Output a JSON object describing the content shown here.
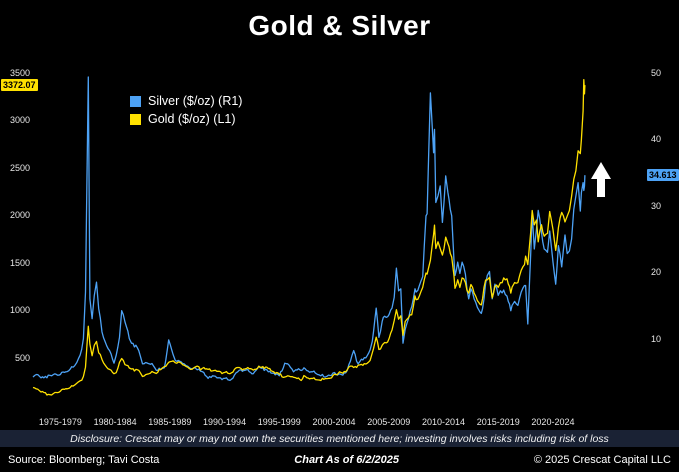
{
  "title": "Gold & Silver",
  "badges": {
    "gold_last": "3372.07",
    "silver_last": "34.613"
  },
  "footer": {
    "disclosure": "Disclosure: Crescat may or may not own the securities mentioned here; investing involves risks including risk of loss",
    "source": "Source: Bloomberg; Tavi Costa",
    "as_of": "Chart As of 6/2/2025",
    "copyright": "© 2025 Crescat Capital LLC"
  },
  "chart_data": {
    "type": "line",
    "title": "Gold & Silver",
    "x_range": [
      1975,
      2031
    ],
    "left_ylim": [
      0,
      3500
    ],
    "right_ylim": [
      0,
      50
    ],
    "left_ticks": [
      500,
      1000,
      1500,
      2000,
      2500,
      3000,
      3500
    ],
    "right_ticks": [
      10,
      20,
      30,
      40,
      50
    ],
    "x_labels": [
      "1975-1979",
      "1980-1984",
      "1985-1989",
      "1990-1994",
      "1995-1999",
      "2000-2004",
      "2005-2009",
      "2010-2014",
      "2015-2019",
      "2020-2024"
    ],
    "legend_position": "top-left",
    "grid": false,
    "background": "#000000",
    "annotations": [
      {
        "type": "arrow-up",
        "color": "#ffffff"
      }
    ],
    "x": [
      1975.0,
      1975.3,
      1975.6,
      1976.0,
      1976.4,
      1976.7,
      1977.0,
      1977.5,
      1978.0,
      1978.4,
      1978.8,
      1979.0,
      1979.3,
      1979.6,
      1979.8,
      1980.05,
      1980.2,
      1980.4,
      1980.6,
      1980.8,
      1981.0,
      1981.3,
      1981.6,
      1982.0,
      1982.4,
      1982.6,
      1982.9,
      1983.1,
      1983.4,
      1983.8,
      1984.0,
      1984.4,
      1984.8,
      1985.0,
      1985.3,
      1985.6,
      1986.0,
      1986.4,
      1986.8,
      1987.0,
      1987.4,
      1987.8,
      1988.0,
      1988.4,
      1988.8,
      1989.0,
      1989.4,
      1989.8,
      1990.0,
      1990.3,
      1990.6,
      1991.0,
      1991.4,
      1991.8,
      1992.0,
      1992.4,
      1992.8,
      1993.0,
      1993.4,
      1993.7,
      1994.0,
      1994.5,
      1995.0,
      1995.5,
      1996.0,
      1996.5,
      1997.0,
      1997.5,
      1998.0,
      1998.4,
      1998.8,
      1999.0,
      1999.5,
      1999.75,
      2000.0,
      2000.4,
      2000.8,
      2001.0,
      2001.3,
      2001.7,
      2002.0,
      2002.4,
      2002.8,
      2003.0,
      2003.3,
      2003.7,
      2004.0,
      2004.3,
      2004.7,
      2005.0,
      2005.4,
      2005.8,
      2006.0,
      2006.35,
      2006.6,
      2006.9,
      2007.0,
      2007.4,
      2007.8,
      2008.0,
      2008.2,
      2008.4,
      2008.6,
      2008.8,
      2009.0,
      2009.3,
      2009.6,
      2009.9,
      2010.0,
      2010.3,
      2010.6,
      2010.9,
      2011.0,
      2011.3,
      2011.6,
      2011.68,
      2011.8,
      2012.0,
      2012.2,
      2012.4,
      2012.7,
      2012.9,
      2013.0,
      2013.25,
      2013.45,
      2013.55,
      2013.8,
      2014.0,
      2014.2,
      2014.5,
      2014.8,
      2015.0,
      2015.3,
      2015.6,
      2015.95,
      2016.2,
      2016.5,
      2016.7,
      2016.95,
      2017.2,
      2017.5,
      2017.7,
      2018.0,
      2018.3,
      2018.65,
      2019.0,
      2019.3,
      2019.6,
      2019.9,
      2020.0,
      2020.2,
      2020.6,
      2020.8,
      2021.0,
      2021.15,
      2021.45,
      2021.7,
      2022.0,
      2022.2,
      2022.5,
      2022.75,
      2023.0,
      2023.3,
      2023.6,
      2023.8,
      2024.0,
      2024.2,
      2024.4,
      2024.6,
      2024.8,
      2025.0,
      2025.1,
      2025.25,
      2025.32,
      2025.38,
      2025.42
    ],
    "series": [
      {
        "name": "Silver ($/oz) (R1)",
        "axis": "right",
        "color": "#4da2f5",
        "values": [
          4.2,
          4.6,
          4.3,
          4.1,
          4.5,
          4.4,
          4.7,
          4.6,
          5.0,
          5.4,
          5.9,
          6.4,
          7.5,
          10.0,
          17.0,
          49.4,
          16.0,
          13.0,
          16.5,
          18.5,
          14.5,
          11.0,
          9.5,
          8.2,
          6.3,
          7.5,
          10.2,
          14.2,
          12.5,
          10.0,
          9.3,
          9.0,
          7.4,
          6.2,
          6.4,
          6.2,
          5.9,
          5.2,
          5.5,
          5.6,
          9.8,
          7.6,
          6.7,
          6.6,
          6.2,
          5.9,
          5.5,
          5.6,
          5.3,
          5.1,
          4.9,
          4.0,
          4.4,
          4.1,
          4.1,
          4.0,
          3.8,
          3.7,
          4.5,
          5.0,
          5.3,
          5.3,
          4.7,
          5.5,
          5.6,
          5.0,
          4.8,
          4.4,
          6.3,
          6.0,
          5.0,
          5.3,
          5.2,
          5.6,
          5.2,
          5.0,
          4.8,
          4.6,
          4.4,
          4.2,
          4.5,
          4.8,
          4.5,
          4.7,
          4.5,
          5.2,
          6.6,
          8.2,
          6.2,
          6.9,
          7.1,
          8.3,
          9.6,
          14.6,
          10.2,
          12.6,
          13.2,
          13.3,
          14.6,
          16.2,
          20.6,
          17.2,
          17.5,
          9.3,
          11.4,
          13.0,
          14.8,
          17.5,
          17.0,
          18.0,
          19.3,
          28.5,
          28.8,
          47.0,
          38.0,
          41.5,
          30.5,
          31.5,
          33.0,
          27.5,
          34.5,
          32.0,
          31.0,
          28.5,
          22.0,
          19.5,
          21.5,
          19.8,
          21.5,
          19.7,
          16.0,
          17.5,
          16.0,
          14.7,
          13.8,
          16.0,
          19.5,
          20.1,
          16.0,
          18.2,
          16.5,
          17.2,
          17.3,
          16.4,
          14.2,
          15.6,
          15.0,
          17.0,
          18.0,
          18.0,
          12.2,
          28.8,
          23.5,
          26.5,
          29.3,
          26.0,
          23.5,
          23.0,
          26.2,
          21.5,
          18.2,
          24.0,
          20.8,
          25.6,
          22.8,
          23.2,
          25.0,
          29.5,
          31.5,
          33.5,
          29.2,
          32.0,
          33.5,
          32.3,
          33.0,
          34.613
        ]
      },
      {
        "name": "Gold ($/oz) (L1)",
        "axis": "left",
        "color": "#ffe100",
        "values": [
          185,
          170,
          150,
          132,
          112,
          105,
          132,
          145,
          172,
          185,
          210,
          230,
          255,
          300,
          400,
          830,
          640,
          520,
          630,
          670,
          550,
          480,
          420,
          375,
          330,
          340,
          450,
          490,
          425,
          390,
          380,
          375,
          340,
          300,
          320,
          330,
          345,
          345,
          390,
          405,
          450,
          465,
          445,
          450,
          420,
          405,
          375,
          400,
          410,
          370,
          395,
          375,
          360,
          355,
          355,
          340,
          335,
          330,
          375,
          395,
          385,
          385,
          378,
          385,
          405,
          385,
          350,
          325,
          295,
          305,
          292,
          287,
          258,
          310,
          288,
          280,
          268,
          265,
          258,
          278,
          282,
          310,
          320,
          350,
          335,
          370,
          410,
          395,
          420,
          428,
          432,
          470,
          550,
          715,
          585,
          630,
          645,
          665,
          790,
          890,
          1005,
          905,
          940,
          735,
          880,
          920,
          950,
          1150,
          1110,
          1150,
          1240,
          1390,
          1380,
          1525,
          1800,
          1895,
          1650,
          1720,
          1650,
          1580,
          1770,
          1700,
          1670,
          1560,
          1370,
          1230,
          1320,
          1240,
          1340,
          1290,
          1180,
          1270,
          1180,
          1100,
          1055,
          1240,
          1320,
          1345,
          1130,
          1250,
          1240,
          1290,
          1340,
          1330,
          1180,
          1290,
          1290,
          1420,
          1480,
          1570,
          1480,
          2050,
          1900,
          1950,
          1720,
          1900,
          1780,
          1810,
          2040,
          1850,
          1630,
          1870,
          2030,
          1930,
          1990,
          2050,
          2200,
          2380,
          2470,
          2680,
          2650,
          2800,
          3100,
          3430,
          3280,
          3372.07
        ]
      }
    ]
  }
}
